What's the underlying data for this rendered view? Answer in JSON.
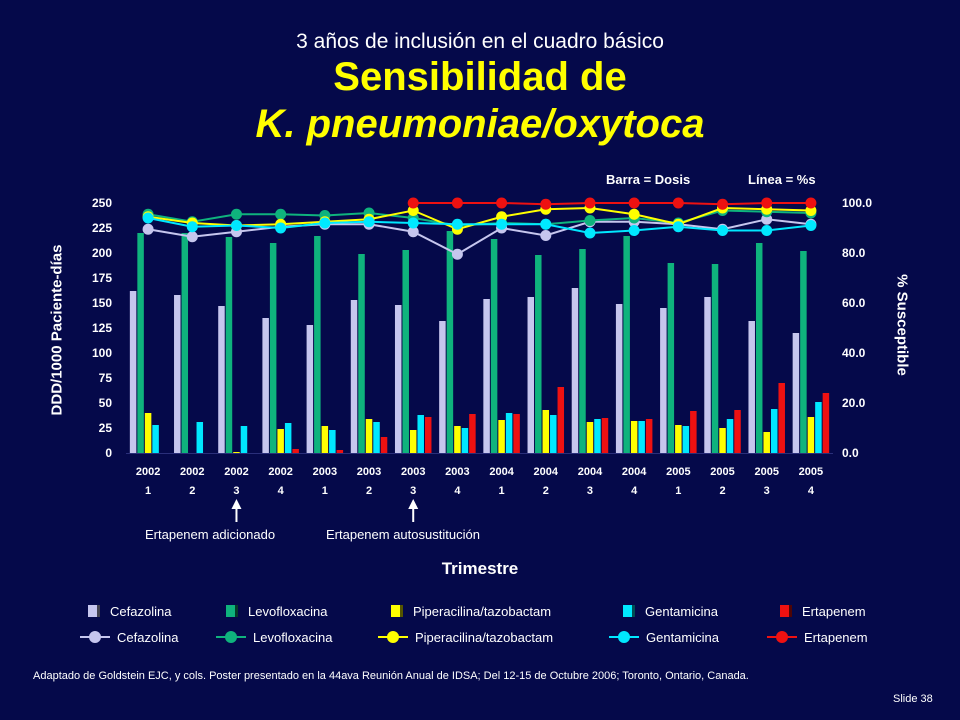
{
  "header": {
    "subtitle": "3 años de inclusión en el cuadro básico",
    "title_line1": "Sensibilidad de",
    "title_line2": "K. pneumoniae/oxytoca"
  },
  "notes": {
    "bar": "Barra = Dosis",
    "line": "Línea = %s"
  },
  "annotations": [
    "Ertapenem adicionado",
    "Ertapenem autosustitución"
  ],
  "footnote": "Adaptado de Goldstein EJC, y cols.  Poster presentado en la 44ava Reunión Anual de  IDSA; Del 12-15 de Octubre 2006; Toronto, Ontario, Canada.",
  "slide_number": "Slide 38",
  "colors": {
    "background": "#05094a",
    "title": "#ffff00",
    "Cefazolina": "#c6c6ee",
    "Levofloxacina": "#0fb37d",
    "Piperacilina/tazobactam": "#ffff00",
    "Gentamicina": "#00e8ff",
    "Ertapenem": "#ee1111"
  },
  "legend_labels": [
    "Cefazolina",
    "Levofloxacina",
    "Piperacilina/tazobactam",
    "Gentamicina",
    "Ertapenem"
  ],
  "chart_data": {
    "type": "bar",
    "combo": "bars (dose, left axis) + lines (% susceptible, right axis)",
    "xlabel": "Trimestre",
    "ylabel": "DDD/1000 Paciente-días",
    "ylabel_right": "% Susceptible",
    "ylim": [
      0,
      250
    ],
    "ylim_right": [
      0,
      100
    ],
    "yticks": [
      0,
      25,
      50,
      75,
      100,
      125,
      150,
      175,
      200,
      225,
      250
    ],
    "yticks_right": [
      "0.0",
      "20.0",
      "40.0",
      "60.0",
      "80.0",
      "100.0"
    ],
    "categories": [
      [
        "2002",
        "1"
      ],
      [
        "2002",
        "2"
      ],
      [
        "2002",
        "3"
      ],
      [
        "2002",
        "4"
      ],
      [
        "2003",
        "1"
      ],
      [
        "2003",
        "2"
      ],
      [
        "2003",
        "3"
      ],
      [
        "2003",
        "4"
      ],
      [
        "2004",
        "1"
      ],
      [
        "2004",
        "2"
      ],
      [
        "2004",
        "3"
      ],
      [
        "2004",
        "4"
      ],
      [
        "2005",
        "1"
      ],
      [
        "2005",
        "2"
      ],
      [
        "2005",
        "3"
      ],
      [
        "2005",
        "4"
      ]
    ],
    "bar_series": [
      {
        "name": "Cefazolina",
        "values": [
          162,
          158,
          147,
          135,
          128,
          153,
          148,
          132,
          154,
          156,
          165,
          149,
          145,
          156,
          132,
          120
        ]
      },
      {
        "name": "Levofloxacina",
        "values": [
          220,
          220,
          216,
          210,
          217,
          199,
          203,
          222,
          214,
          198,
          204,
          217,
          190,
          189,
          210,
          202
        ]
      },
      {
        "name": "Piperacilina/tazobactam",
        "values": [
          40,
          0,
          1,
          24,
          27,
          34,
          23,
          27,
          33,
          43,
          31,
          32,
          28,
          25,
          21,
          36
        ]
      },
      {
        "name": "Gentamicina",
        "values": [
          28,
          31,
          27,
          30,
          23,
          31,
          38,
          25,
          40,
          38,
          34,
          32,
          27,
          34,
          44,
          51
        ]
      },
      {
        "name": "Ertapenem",
        "values": [
          0,
          0,
          0,
          4,
          3,
          16,
          36,
          39,
          39,
          66,
          35,
          34,
          42,
          43,
          70,
          60
        ]
      }
    ],
    "line_series": [
      {
        "name": "Cefazolina",
        "values": [
          89.5,
          86.5,
          88.5,
          90.5,
          91.5,
          91.5,
          88.5,
          79.5,
          90.0,
          87.0,
          92.5,
          92.5,
          91.5,
          89.5,
          93.5,
          91.5
        ]
      },
      {
        "name": "Levofloxacina",
        "values": [
          95.5,
          92.5,
          95.5,
          95.5,
          95.0,
          96.0,
          94.0,
          91.0,
          92.0,
          91.5,
          93.0,
          94.0,
          92.0,
          97.0,
          96.5,
          96.0
        ]
      },
      {
        "name": "Piperacilina/tazobactam",
        "values": [
          94.5,
          92.0,
          91.0,
          91.5,
          92.5,
          93.5,
          97.0,
          89.5,
          94.5,
          97.5,
          98.0,
          95.5,
          91.5,
          98.0,
          97.5,
          97.0
        ]
      },
      {
        "name": "Gentamicina",
        "values": [
          94.0,
          90.5,
          91.0,
          90.0,
          92.0,
          92.5,
          92.0,
          91.5,
          91.5,
          91.5,
          88.0,
          89.0,
          90.5,
          89.0,
          89.0,
          91.0
        ]
      },
      {
        "name": "Ertapenem",
        "values": [
          null,
          null,
          null,
          null,
          null,
          null,
          100,
          100,
          100,
          99.5,
          100,
          100,
          100,
          99.5,
          100,
          100
        ]
      }
    ]
  }
}
